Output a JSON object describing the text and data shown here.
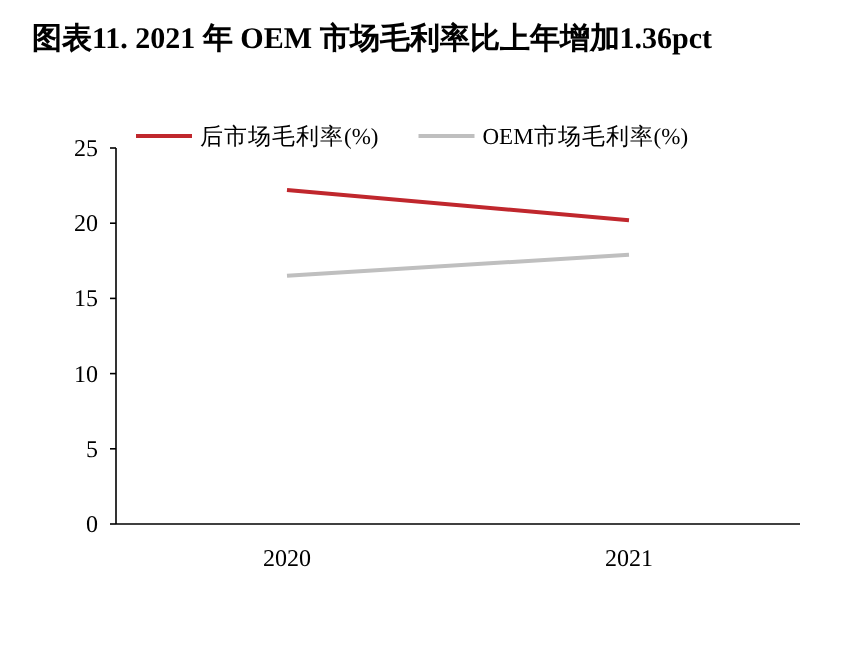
{
  "chart_data": {
    "type": "line",
    "title": "图表11. 2021 年 OEM 市场毛利率比上年增加1.36pct",
    "categories": [
      "2020",
      "2021"
    ],
    "series": [
      {
        "name": "后市场毛利率(%)",
        "color": "#c0272d",
        "values": [
          22.2,
          20.2
        ]
      },
      {
        "name": "OEM市场毛利率(%)",
        "color": "#bfbfbf",
        "values": [
          16.5,
          17.9
        ]
      }
    ],
    "ylim": [
      0,
      25
    ],
    "yticks": [
      0,
      5,
      10,
      15,
      20,
      25
    ],
    "legend": "top",
    "grid": false,
    "marker": "none"
  }
}
